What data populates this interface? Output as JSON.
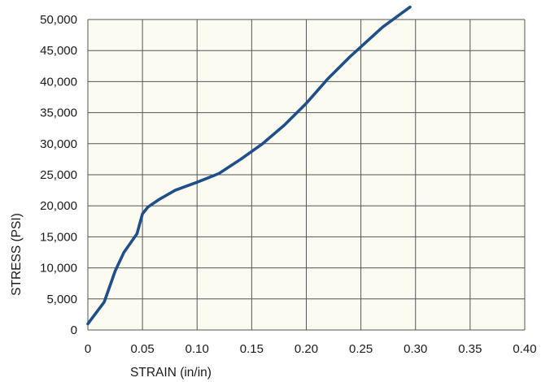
{
  "chart_data": {
    "type": "line",
    "title": "",
    "xlabel": "STRAIN (in/in)",
    "ylabel": "STRESS (PSI)",
    "xlim": [
      0,
      0.4
    ],
    "ylim": [
      0,
      50000
    ],
    "grid": true,
    "x_ticks": [
      0,
      0.05,
      0.1,
      0.15,
      0.2,
      0.25,
      0.3,
      0.35,
      0.4
    ],
    "x_tick_labels": [
      "0",
      "0.05",
      "0.10",
      "0.15",
      "0.20",
      "0.25",
      "0.30",
      "0.35",
      "0.40"
    ],
    "y_ticks": [
      0,
      5000,
      10000,
      15000,
      20000,
      25000,
      30000,
      35000,
      40000,
      45000,
      50000
    ],
    "y_tick_labels": [
      "0",
      "5,000",
      "10,000",
      "15,000",
      "20,000",
      "25,000",
      "30,000",
      "35,000",
      "40,000",
      "45,000",
      "50,000"
    ],
    "series": [
      {
        "color": "#1f4f8b",
        "x": [
          0.0,
          0.015,
          0.025,
          0.033,
          0.045,
          0.05,
          0.055,
          0.065,
          0.08,
          0.1,
          0.12,
          0.14,
          0.16,
          0.18,
          0.2,
          0.22,
          0.24,
          0.27,
          0.295
        ],
        "y": [
          1000,
          4500,
          9500,
          12500,
          15500,
          18700,
          19800,
          21000,
          22500,
          23800,
          25200,
          27500,
          30000,
          33000,
          36500,
          40500,
          44000,
          48800,
          52000
        ]
      }
    ]
  }
}
